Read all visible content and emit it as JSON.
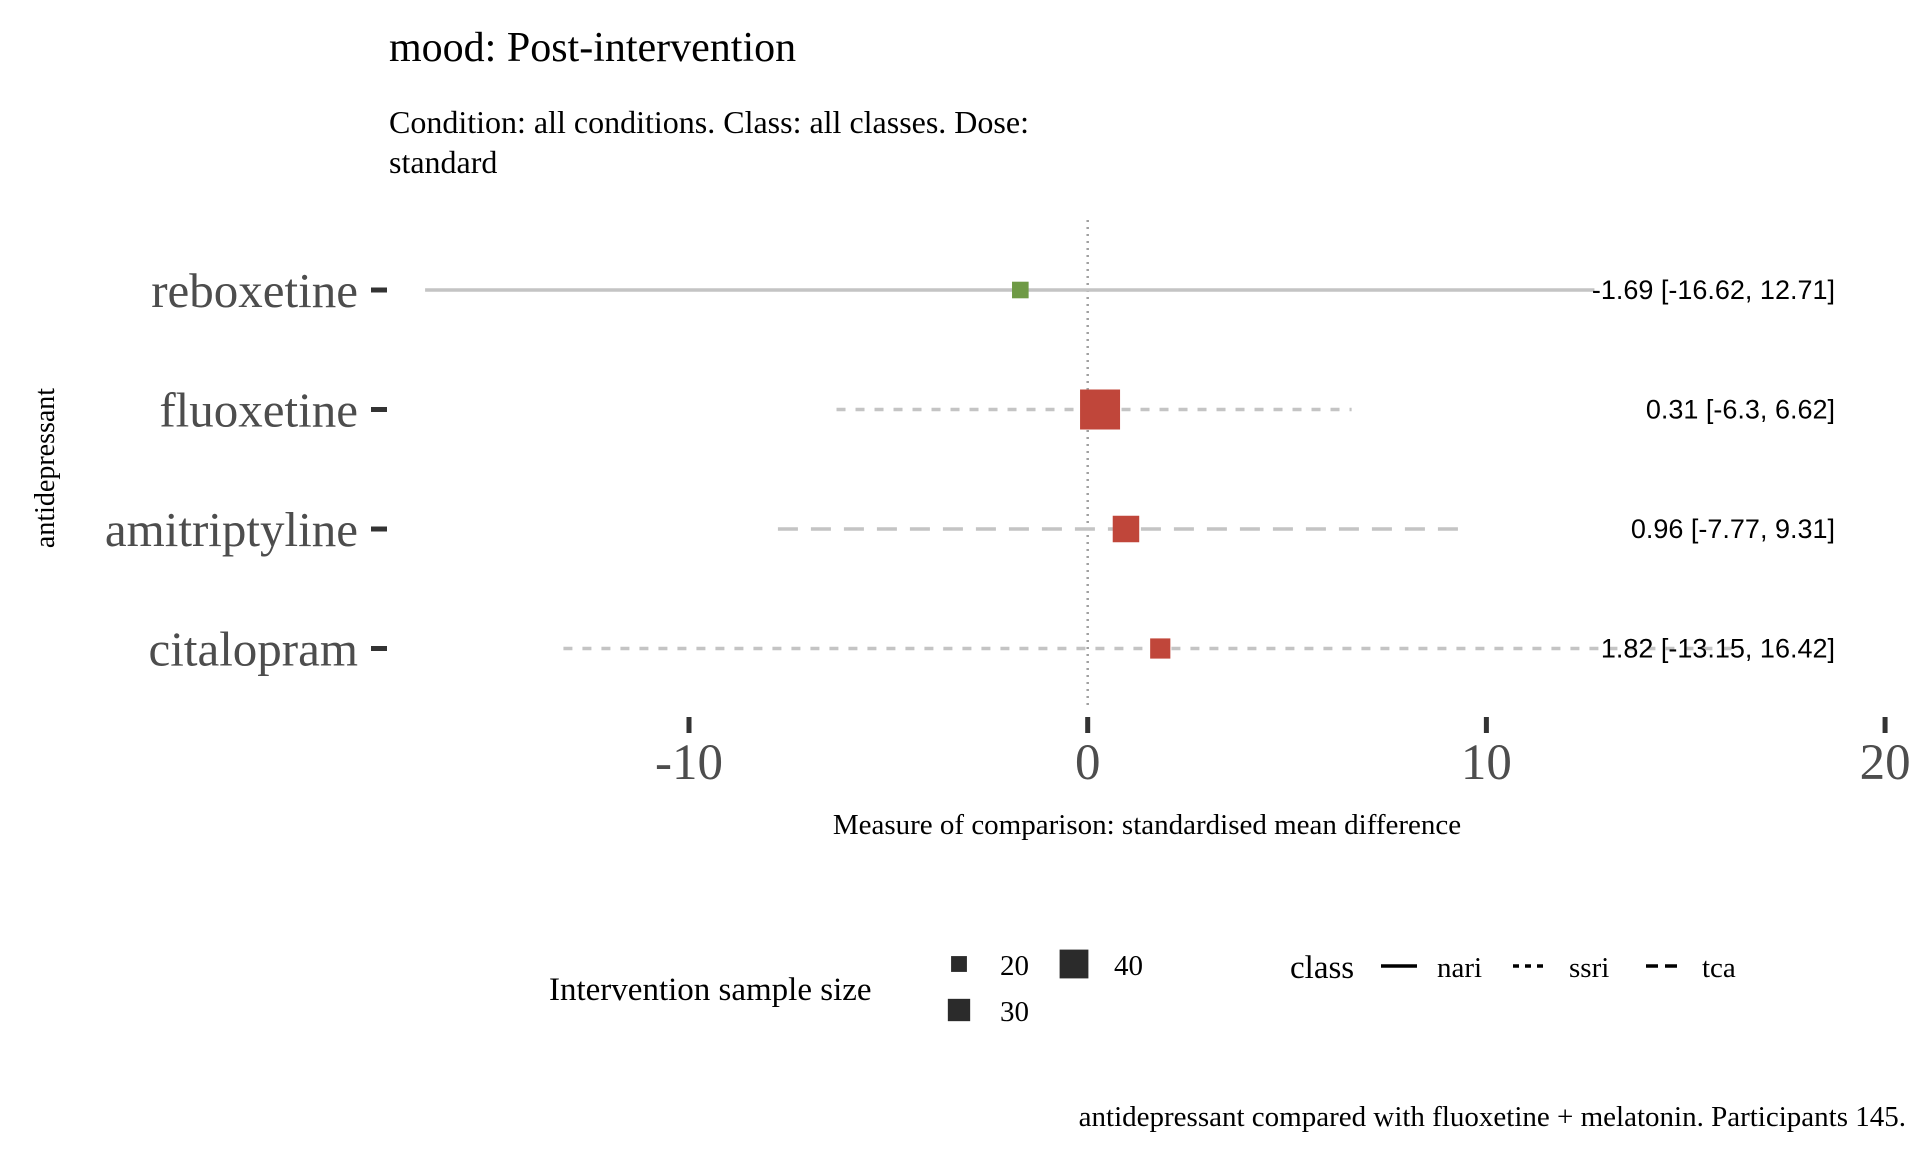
{
  "chart_data": {
    "type": "forest",
    "title": "mood: Post-intervention",
    "subtitle_lines": [
      "Condition: all conditions. Class: all classes. Dose:",
      "standard"
    ],
    "ylabel": "antidepressant",
    "xlabel": "Measure of comparison: standardised mean difference",
    "caption": "antidepressant compared with fluoxetine + melatonin. Participants 145.",
    "xlim": [
      -17.5,
      20.5
    ],
    "x_ticks": [
      -10,
      0,
      10,
      20
    ],
    "x_tick_labels": [
      "-10",
      "0",
      "10",
      "20"
    ],
    "reference_line": 0,
    "grid": false,
    "rows": [
      {
        "name": "reboxetine",
        "estimate": -1.69,
        "lower": -16.62,
        "upper": 12.71,
        "class": "nari",
        "sample_size": 14,
        "color": "#6e9a45",
        "label": "-1.69 [-16.62, 12.71]"
      },
      {
        "name": "fluoxetine",
        "estimate": 0.31,
        "lower": -6.3,
        "upper": 6.62,
        "class": "ssri",
        "sample_size": 40,
        "color": "#c0463a",
        "label": "0.31 [-6.3, 6.62]"
      },
      {
        "name": "amitriptyline",
        "estimate": 0.96,
        "lower": -7.77,
        "upper": 9.31,
        "class": "tca",
        "sample_size": 25,
        "color": "#c0463a",
        "label": "0.96 [-7.77, 9.31]"
      },
      {
        "name": "citalopram",
        "estimate": 1.82,
        "lower": -13.15,
        "upper": 16.42,
        "class": "ssri",
        "sample_size": 18,
        "color": "#c0463a",
        "label": "1.82 [-13.15, 16.42]"
      }
    ],
    "legend": {
      "placement": "bottom",
      "size_title": "Intervention sample size",
      "size_entries": [
        {
          "label": "20",
          "value": 20
        },
        {
          "label": "30",
          "value": 30
        },
        {
          "label": "40",
          "value": 40
        }
      ],
      "class_title": "class",
      "class_entries": [
        "nari",
        "ssri",
        "tca"
      ]
    },
    "colors": {
      "ci_line": "#c4c4c4",
      "reference_line": "#a0a0a0",
      "axis_text": "#4d4d4d",
      "tick": "#333333",
      "legend_key": "#2b2b2b"
    }
  }
}
